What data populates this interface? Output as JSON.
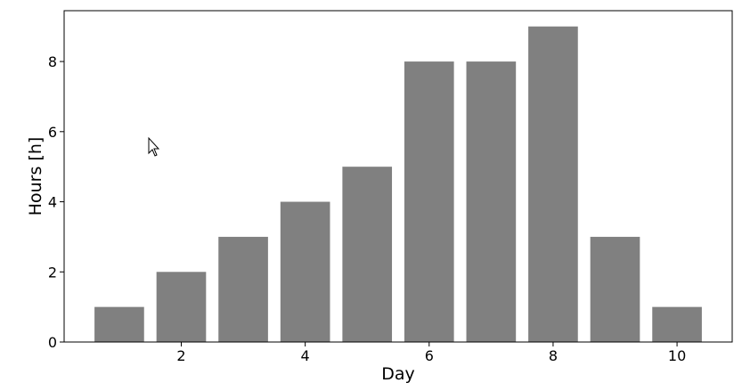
{
  "chart_data": {
    "type": "bar",
    "x": [
      1,
      2,
      3,
      4,
      5,
      6,
      7,
      8,
      9,
      10
    ],
    "values": [
      1,
      2,
      3,
      4,
      5,
      8,
      8,
      9,
      3,
      1
    ],
    "color": "#808080",
    "xlabel": "Day",
    "ylabel": "Hours [h]",
    "xlim": [
      0.11,
      10.89
    ],
    "xticks": [
      2,
      4,
      6,
      8,
      10
    ],
    "ylim": [
      0,
      9.45
    ],
    "yticks": [
      0,
      2,
      4,
      6,
      8
    ]
  }
}
